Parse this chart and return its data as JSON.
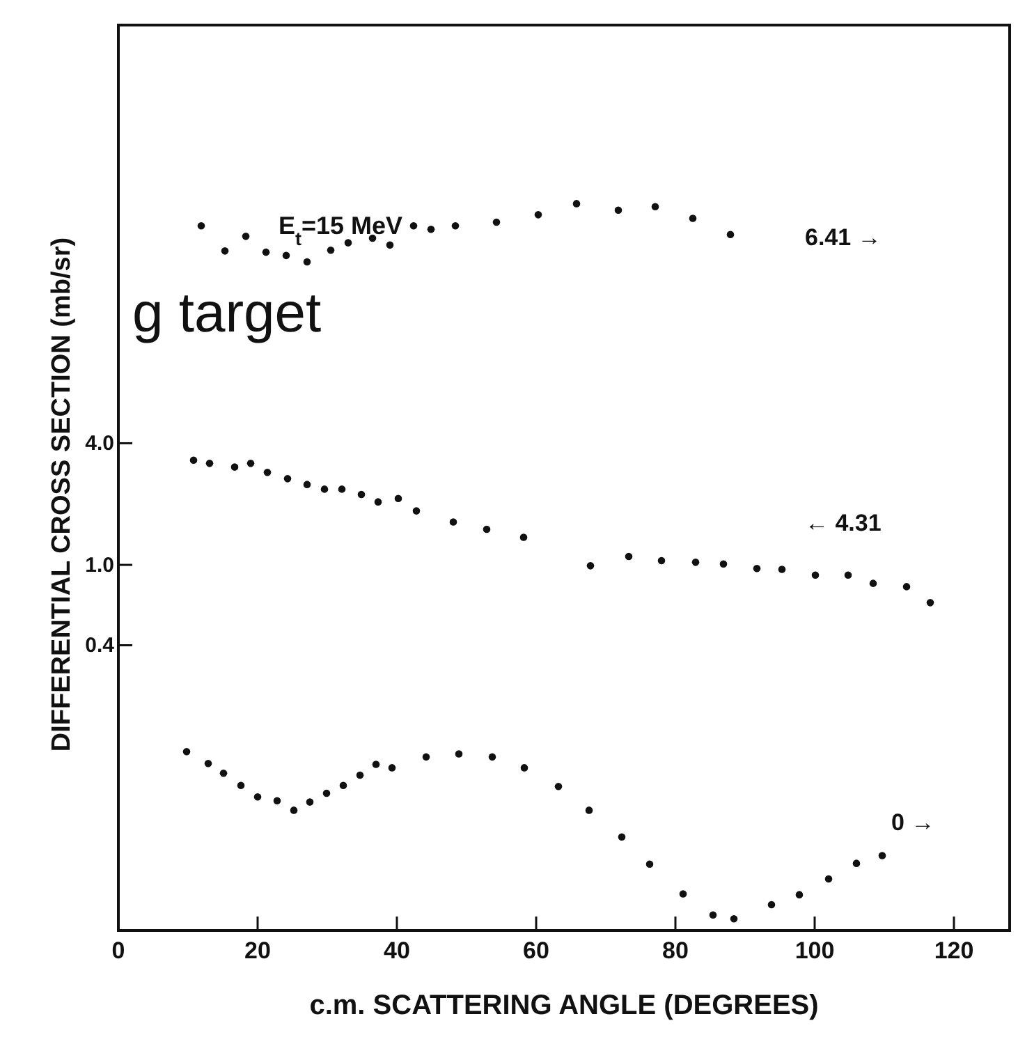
{
  "chart_data": {
    "type": "scatter",
    "xlabel": "c.m. SCATTERING ANGLE (DEGREES)",
    "ylabel": "DIFFERENTIAL CROSS SECTION (mb/sr)",
    "log": "y",
    "marker": "circle",
    "grid": false,
    "xlim": [
      0,
      128
    ],
    "xticks": [
      0,
      20,
      40,
      60,
      80,
      100,
      120
    ],
    "ylim": [
      0.0155,
      470
    ],
    "yticks": [
      0.4,
      {
        "value": 1,
        "label": "1.0"
      },
      {
        "value": 4,
        "label": "4.0"
      }
    ],
    "series": [
      {
        "color": "#111111",
        "x": [
          11.9,
          15.3,
          18.3,
          21.2,
          24.1,
          27.1,
          30.5,
          33.0,
          36.5,
          39.0,
          42.4,
          44.9,
          48.4,
          54.3,
          60.3,
          65.8,
          71.8,
          77.1,
          82.5,
          87.9
        ],
        "values": [
          47.7,
          35.8,
          42.3,
          35.3,
          34.0,
          31.6,
          36.1,
          39.3,
          41.4,
          38.3,
          47.7,
          45.8,
          47.7,
          49.7,
          54.1,
          61.4,
          57.0,
          59.3,
          51.9,
          43.2
        ]
      },
      {
        "color": "#111111",
        "x": [
          10.8,
          13.1,
          16.7,
          19.0,
          21.4,
          24.3,
          27.1,
          29.6,
          32.1,
          34.9,
          37.3,
          40.2,
          42.8,
          48.1,
          52.9,
          58.2,
          67.8,
          73.3,
          78.0,
          82.9,
          86.9,
          91.7,
          95.3,
          100.1,
          104.8,
          108.4,
          113.2,
          116.6
        ],
        "values": [
          3.3,
          3.18,
          3.05,
          3.18,
          2.87,
          2.67,
          2.5,
          2.37,
          2.37,
          2.23,
          2.05,
          2.13,
          1.85,
          1.63,
          1.5,
          1.37,
          0.99,
          1.1,
          1.05,
          1.03,
          1.01,
          0.96,
          0.95,
          0.89,
          0.89,
          0.81,
          0.78,
          0.65
        ]
      },
      {
        "color": "#111111",
        "x": [
          9.8,
          12.9,
          15.1,
          17.6,
          20.0,
          22.8,
          25.2,
          27.5,
          29.9,
          32.3,
          34.7,
          37.0,
          39.3,
          44.2,
          48.9,
          53.7,
          58.3,
          63.2,
          67.6,
          72.3,
          76.3,
          81.1,
          85.4,
          88.4,
          93.8,
          97.8,
          102.0,
          106.0,
          109.7
        ],
        "values": [
          0.119,
          0.104,
          0.093,
          0.081,
          0.071,
          0.068,
          0.061,
          0.067,
          0.074,
          0.081,
          0.091,
          0.103,
          0.099,
          0.112,
          0.116,
          0.112,
          0.099,
          0.08,
          0.061,
          0.045,
          0.033,
          0.0235,
          0.0185,
          0.0177,
          0.0208,
          0.0233,
          0.0279,
          0.0333,
          0.0364
        ]
      }
    ],
    "annotations": [
      "E$_{t}$=15 MeV",
      "g target",
      "6.41 →",
      "← 4.31",
      "0 →"
    ]
  }
}
